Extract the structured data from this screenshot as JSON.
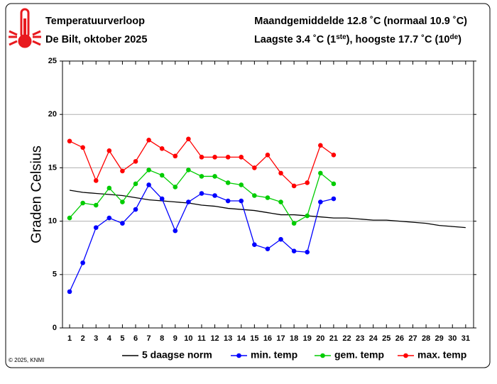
{
  "chart_data": {
    "type": "line",
    "title": "Temperatuurverloop",
    "subtitle": "De Bilt, oktober 2025",
    "annotations": [
      "Maandgemiddelde 12.8 ˚C (normaal 10.9 ˚C)",
      [
        "Laagste 3.4 ˚C (1",
        "ste",
        "), hoogste 17.7 ˚C (10",
        "de",
        ")"
      ]
    ],
    "source": "© 2025, KNMI",
    "ylabel": "Graden Celsius",
    "x": [
      1,
      2,
      3,
      4,
      5,
      6,
      7,
      8,
      9,
      10,
      11,
      12,
      13,
      14,
      15,
      16,
      17,
      18,
      19,
      20,
      21,
      22,
      23,
      24,
      25,
      26,
      27,
      28,
      29,
      30,
      31
    ],
    "xlim": [
      0.46,
      31.6
    ],
    "xticks": [
      1,
      2,
      3,
      4,
      5,
      6,
      7,
      8,
      9,
      10,
      11,
      12,
      13,
      14,
      15,
      16,
      17,
      18,
      19,
      20,
      21,
      22,
      23,
      24,
      25,
      26,
      27,
      28,
      29,
      30,
      31
    ],
    "ylim": [
      0,
      25
    ],
    "yticks": [
      0,
      5,
      10,
      15,
      20,
      25
    ],
    "grid": true,
    "series": [
      {
        "name": "5 daagse norm",
        "color": "#000000",
        "markers": false,
        "values": [
          12.9,
          12.7,
          12.6,
          12.5,
          12.4,
          12.2,
          12.0,
          11.9,
          11.8,
          11.7,
          11.5,
          11.4,
          11.2,
          11.1,
          11.0,
          10.8,
          10.6,
          10.6,
          10.5,
          10.4,
          10.3,
          10.3,
          10.2,
          10.1,
          10.1,
          10.0,
          9.9,
          9.8,
          9.6,
          9.5,
          9.4
        ]
      },
      {
        "name": "min. temp",
        "color": "#0000ff",
        "markers": true,
        "values": [
          3.4,
          6.1,
          9.4,
          10.3,
          9.8,
          11.1,
          13.4,
          12.1,
          9.1,
          11.8,
          12.6,
          12.4,
          11.9,
          11.9,
          7.8,
          7.4,
          8.3,
          7.2,
          7.1,
          11.8,
          12.1,
          null,
          null,
          null,
          null,
          null,
          null,
          null,
          null,
          null,
          null
        ]
      },
      {
        "name": "gem. temp",
        "color": "#00cc00",
        "markers": true,
        "values": [
          10.3,
          11.7,
          11.5,
          13.1,
          11.8,
          13.5,
          14.8,
          14.3,
          13.2,
          14.8,
          14.2,
          14.2,
          13.6,
          13.4,
          12.4,
          12.2,
          11.8,
          9.8,
          10.5,
          14.5,
          13.5,
          null,
          null,
          null,
          null,
          null,
          null,
          null,
          null,
          null,
          null
        ]
      },
      {
        "name": "max. temp",
        "color": "#ff0000",
        "markers": true,
        "values": [
          17.5,
          16.9,
          13.8,
          16.6,
          14.7,
          15.6,
          17.6,
          16.8,
          16.1,
          17.7,
          16.0,
          16.0,
          16.0,
          16.0,
          15.0,
          16.2,
          14.5,
          13.3,
          13.6,
          17.1,
          16.2,
          null,
          null,
          null,
          null,
          null,
          null,
          null,
          null,
          null,
          null
        ]
      }
    ]
  }
}
